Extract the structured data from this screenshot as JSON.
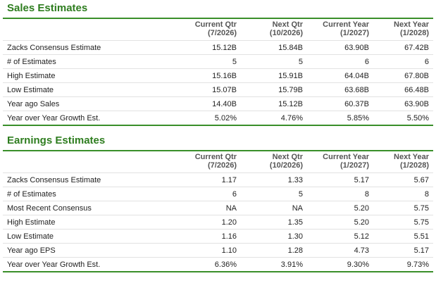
{
  "sales": {
    "title": "Sales Estimates",
    "columns": [
      {
        "line1": "Current Qtr",
        "line2": "(7/2026)"
      },
      {
        "line1": "Next Qtr",
        "line2": "(10/2026)"
      },
      {
        "line1": "Current Year",
        "line2": "(1/2027)"
      },
      {
        "line1": "Next Year",
        "line2": "(1/2028)"
      }
    ],
    "rows": [
      {
        "label": "Zacks Consensus Estimate",
        "values": [
          "15.12B",
          "15.84B",
          "63.90B",
          "67.42B"
        ]
      },
      {
        "label": "# of Estimates",
        "values": [
          "5",
          "5",
          "6",
          "6"
        ]
      },
      {
        "label": "High Estimate",
        "values": [
          "15.16B",
          "15.91B",
          "64.04B",
          "67.80B"
        ]
      },
      {
        "label": "Low Estimate",
        "values": [
          "15.07B",
          "15.79B",
          "63.68B",
          "66.48B"
        ]
      },
      {
        "label": "Year ago Sales",
        "values": [
          "14.40B",
          "15.12B",
          "60.37B",
          "63.90B"
        ]
      },
      {
        "label": "Year over Year Growth Est.",
        "values": [
          "5.02%",
          "4.76%",
          "5.85%",
          "5.50%"
        ]
      }
    ]
  },
  "earnings": {
    "title": "Earnings Estimates",
    "columns": [
      {
        "line1": "Current Qtr",
        "line2": "(7/2026)"
      },
      {
        "line1": "Next Qtr",
        "line2": "(10/2026)"
      },
      {
        "line1": "Current Year",
        "line2": "(1/2027)"
      },
      {
        "line1": "Next Year",
        "line2": "(1/2028)"
      }
    ],
    "rows": [
      {
        "label": "Zacks Consensus Estimate",
        "values": [
          "1.17",
          "1.33",
          "5.17",
          "5.67"
        ]
      },
      {
        "label": "# of Estimates",
        "values": [
          "6",
          "5",
          "8",
          "8"
        ]
      },
      {
        "label": "Most Recent Consensus",
        "values": [
          "NA",
          "NA",
          "5.20",
          "5.75"
        ]
      },
      {
        "label": "High Estimate",
        "values": [
          "1.20",
          "1.35",
          "5.20",
          "5.75"
        ]
      },
      {
        "label": "Low Estimate",
        "values": [
          "1.16",
          "1.30",
          "5.12",
          "5.51"
        ]
      },
      {
        "label": "Year ago EPS",
        "values": [
          "1.10",
          "1.28",
          "4.73",
          "5.17"
        ]
      },
      {
        "label": "Year over Year Growth Est.",
        "values": [
          "6.36%",
          "3.91%",
          "9.30%",
          "9.73%"
        ]
      }
    ]
  },
  "colors": {
    "accent": "#2e7d1f",
    "rule": "#3a8f2a",
    "divider": "#e2e2e2"
  }
}
